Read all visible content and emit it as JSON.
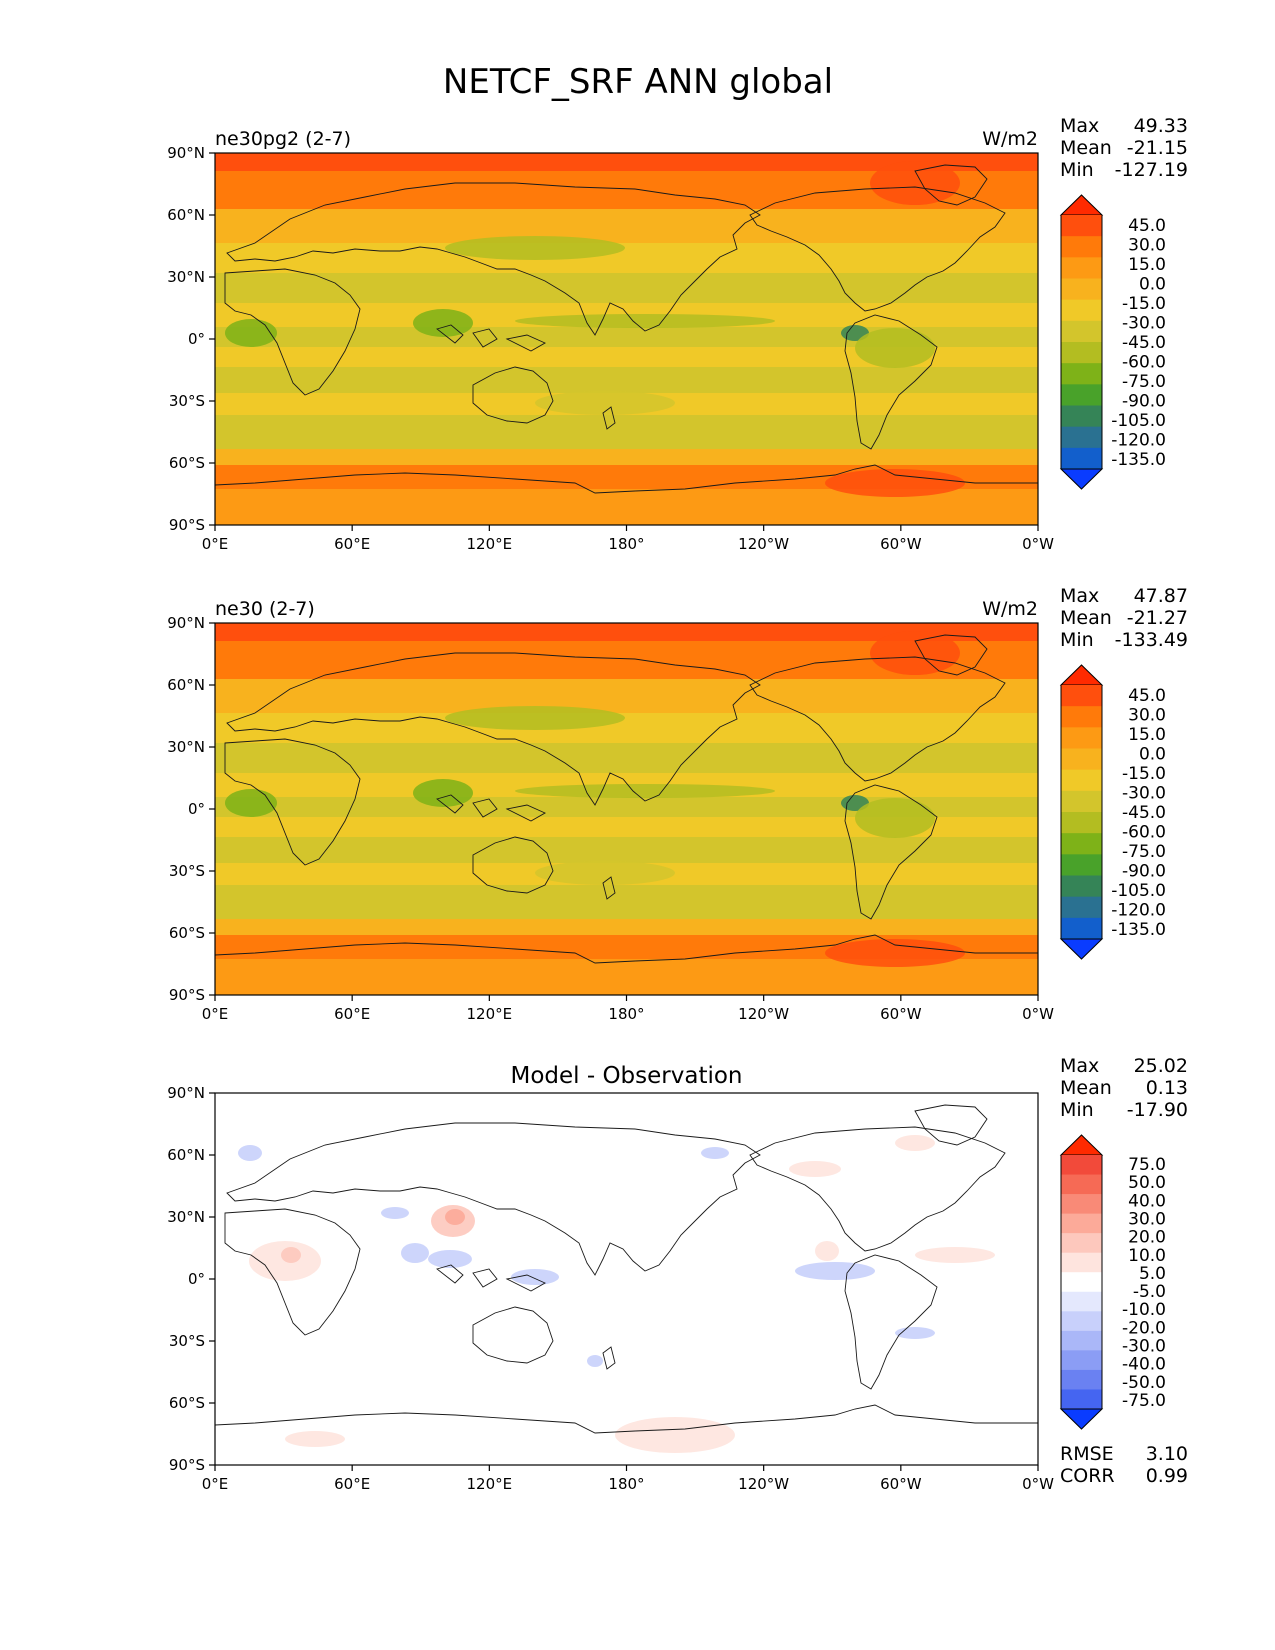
{
  "figure": {
    "title": "NETCF_SRF ANN global"
  },
  "axes": {
    "x_ticks": [
      "0°E",
      "60°E",
      "120°E",
      "180°",
      "120°W",
      "60°W",
      "0°W"
    ],
    "y_ticks": [
      "90°N",
      "60°N",
      "30°N",
      "0°",
      "30°S",
      "60°S",
      "90°S"
    ]
  },
  "panels": [
    {
      "left_title": "ne30pg2 (2-7)",
      "center_title": "",
      "units": "W/m2",
      "stats": [
        {
          "label": "Max",
          "value": "49.33"
        },
        {
          "label": "Mean",
          "value": "-21.15"
        },
        {
          "label": "Min",
          "value": "-127.19"
        }
      ],
      "footer_stats": [],
      "colorbar": {
        "levels": [
          "45.0",
          "30.0",
          "15.0",
          "0.0",
          "-15.0",
          "-30.0",
          "-45.0",
          "-60.0",
          "-75.0",
          "-90.0",
          "-105.0",
          "-120.0",
          "-135.0"
        ],
        "colors": [
          "#ff2a00",
          "#ff4f0d",
          "#ff7a0a",
          "#fd9a14",
          "#f8b21e",
          "#f0c928",
          "#d3c52c",
          "#b3bd21",
          "#7eb218",
          "#49a22a",
          "#358457",
          "#2a7191",
          "#125fcc",
          "#0a3cff"
        ]
      }
    },
    {
      "left_title": "ne30 (2-7)",
      "center_title": "",
      "units": "W/m2",
      "stats": [
        {
          "label": "Max",
          "value": "47.87"
        },
        {
          "label": "Mean",
          "value": "-21.27"
        },
        {
          "label": "Min",
          "value": "-133.49"
        }
      ],
      "footer_stats": [],
      "colorbar": {
        "levels": [
          "45.0",
          "30.0",
          "15.0",
          "0.0",
          "-15.0",
          "-30.0",
          "-45.0",
          "-60.0",
          "-75.0",
          "-90.0",
          "-105.0",
          "-120.0",
          "-135.0"
        ],
        "colors": [
          "#ff2a00",
          "#ff4f0d",
          "#ff7a0a",
          "#fd9a14",
          "#f8b21e",
          "#f0c928",
          "#d3c52c",
          "#b3bd21",
          "#7eb218",
          "#49a22a",
          "#358457",
          "#2a7191",
          "#125fcc",
          "#0a3cff"
        ]
      }
    },
    {
      "left_title": "",
      "center_title": "Model - Observation",
      "units": "",
      "stats": [
        {
          "label": "Max",
          "value": "25.02"
        },
        {
          "label": "Mean",
          "value": "0.13"
        },
        {
          "label": "Min",
          "value": "-17.90"
        }
      ],
      "footer_stats": [
        {
          "label": "RMSE",
          "value": "3.10"
        },
        {
          "label": "CORR",
          "value": "0.99"
        }
      ],
      "colorbar": {
        "levels": [
          "75.0",
          "50.0",
          "40.0",
          "30.0",
          "20.0",
          "10.0",
          "5.0",
          "-5.0",
          "-10.0",
          "-20.0",
          "-30.0",
          "-40.0",
          "-50.0",
          "-75.0"
        ],
        "colors": [
          "#ff2a00",
          "#f24a3a",
          "#f66a55",
          "#f98a77",
          "#fcaa99",
          "#fdc8bd",
          "#fee4de",
          "#ffffff",
          "#e4e8fd",
          "#c8d0fb",
          "#aab7f8",
          "#8b9df5",
          "#6a81f2",
          "#4565f1",
          "#0a3cff"
        ]
      }
    }
  ],
  "chart_data": {
    "type": "heatmap",
    "title": "NETCF_SRF ANN global",
    "x_ticks": [
      "0°E",
      "60°E",
      "120°E",
      "180°",
      "120°W",
      "60°W",
      "0°W"
    ],
    "y_ticks": [
      "90°N",
      "60°N",
      "30°N",
      "0°",
      "30°S",
      "60°S",
      "90°S"
    ],
    "xlim": [
      0,
      360
    ],
    "ylim": [
      -90,
      90
    ],
    "panels": [
      {
        "title": "ne30pg2 (2-7)",
        "units": "W/m2",
        "max": 49.33,
        "mean": -21.15,
        "min": -127.19,
        "contour_levels": [
          -135,
          -120,
          -105,
          -90,
          -75,
          -60,
          -45,
          -30,
          -15,
          0,
          15,
          30,
          45
        ]
      },
      {
        "title": "ne30 (2-7)",
        "units": "W/m2",
        "max": 47.87,
        "mean": -21.27,
        "min": -133.49,
        "contour_levels": [
          -135,
          -120,
          -105,
          -90,
          -75,
          -60,
          -45,
          -30,
          -15,
          0,
          15,
          30,
          45
        ]
      },
      {
        "title": "Model - Observation",
        "max": 25.02,
        "mean": 0.13,
        "min": -17.9,
        "rmse": 3.1,
        "corr": 0.99,
        "contour_levels": [
          -75,
          -50,
          -40,
          -30,
          -20,
          -10,
          -5,
          5,
          10,
          20,
          30,
          40,
          50,
          75
        ]
      }
    ]
  }
}
